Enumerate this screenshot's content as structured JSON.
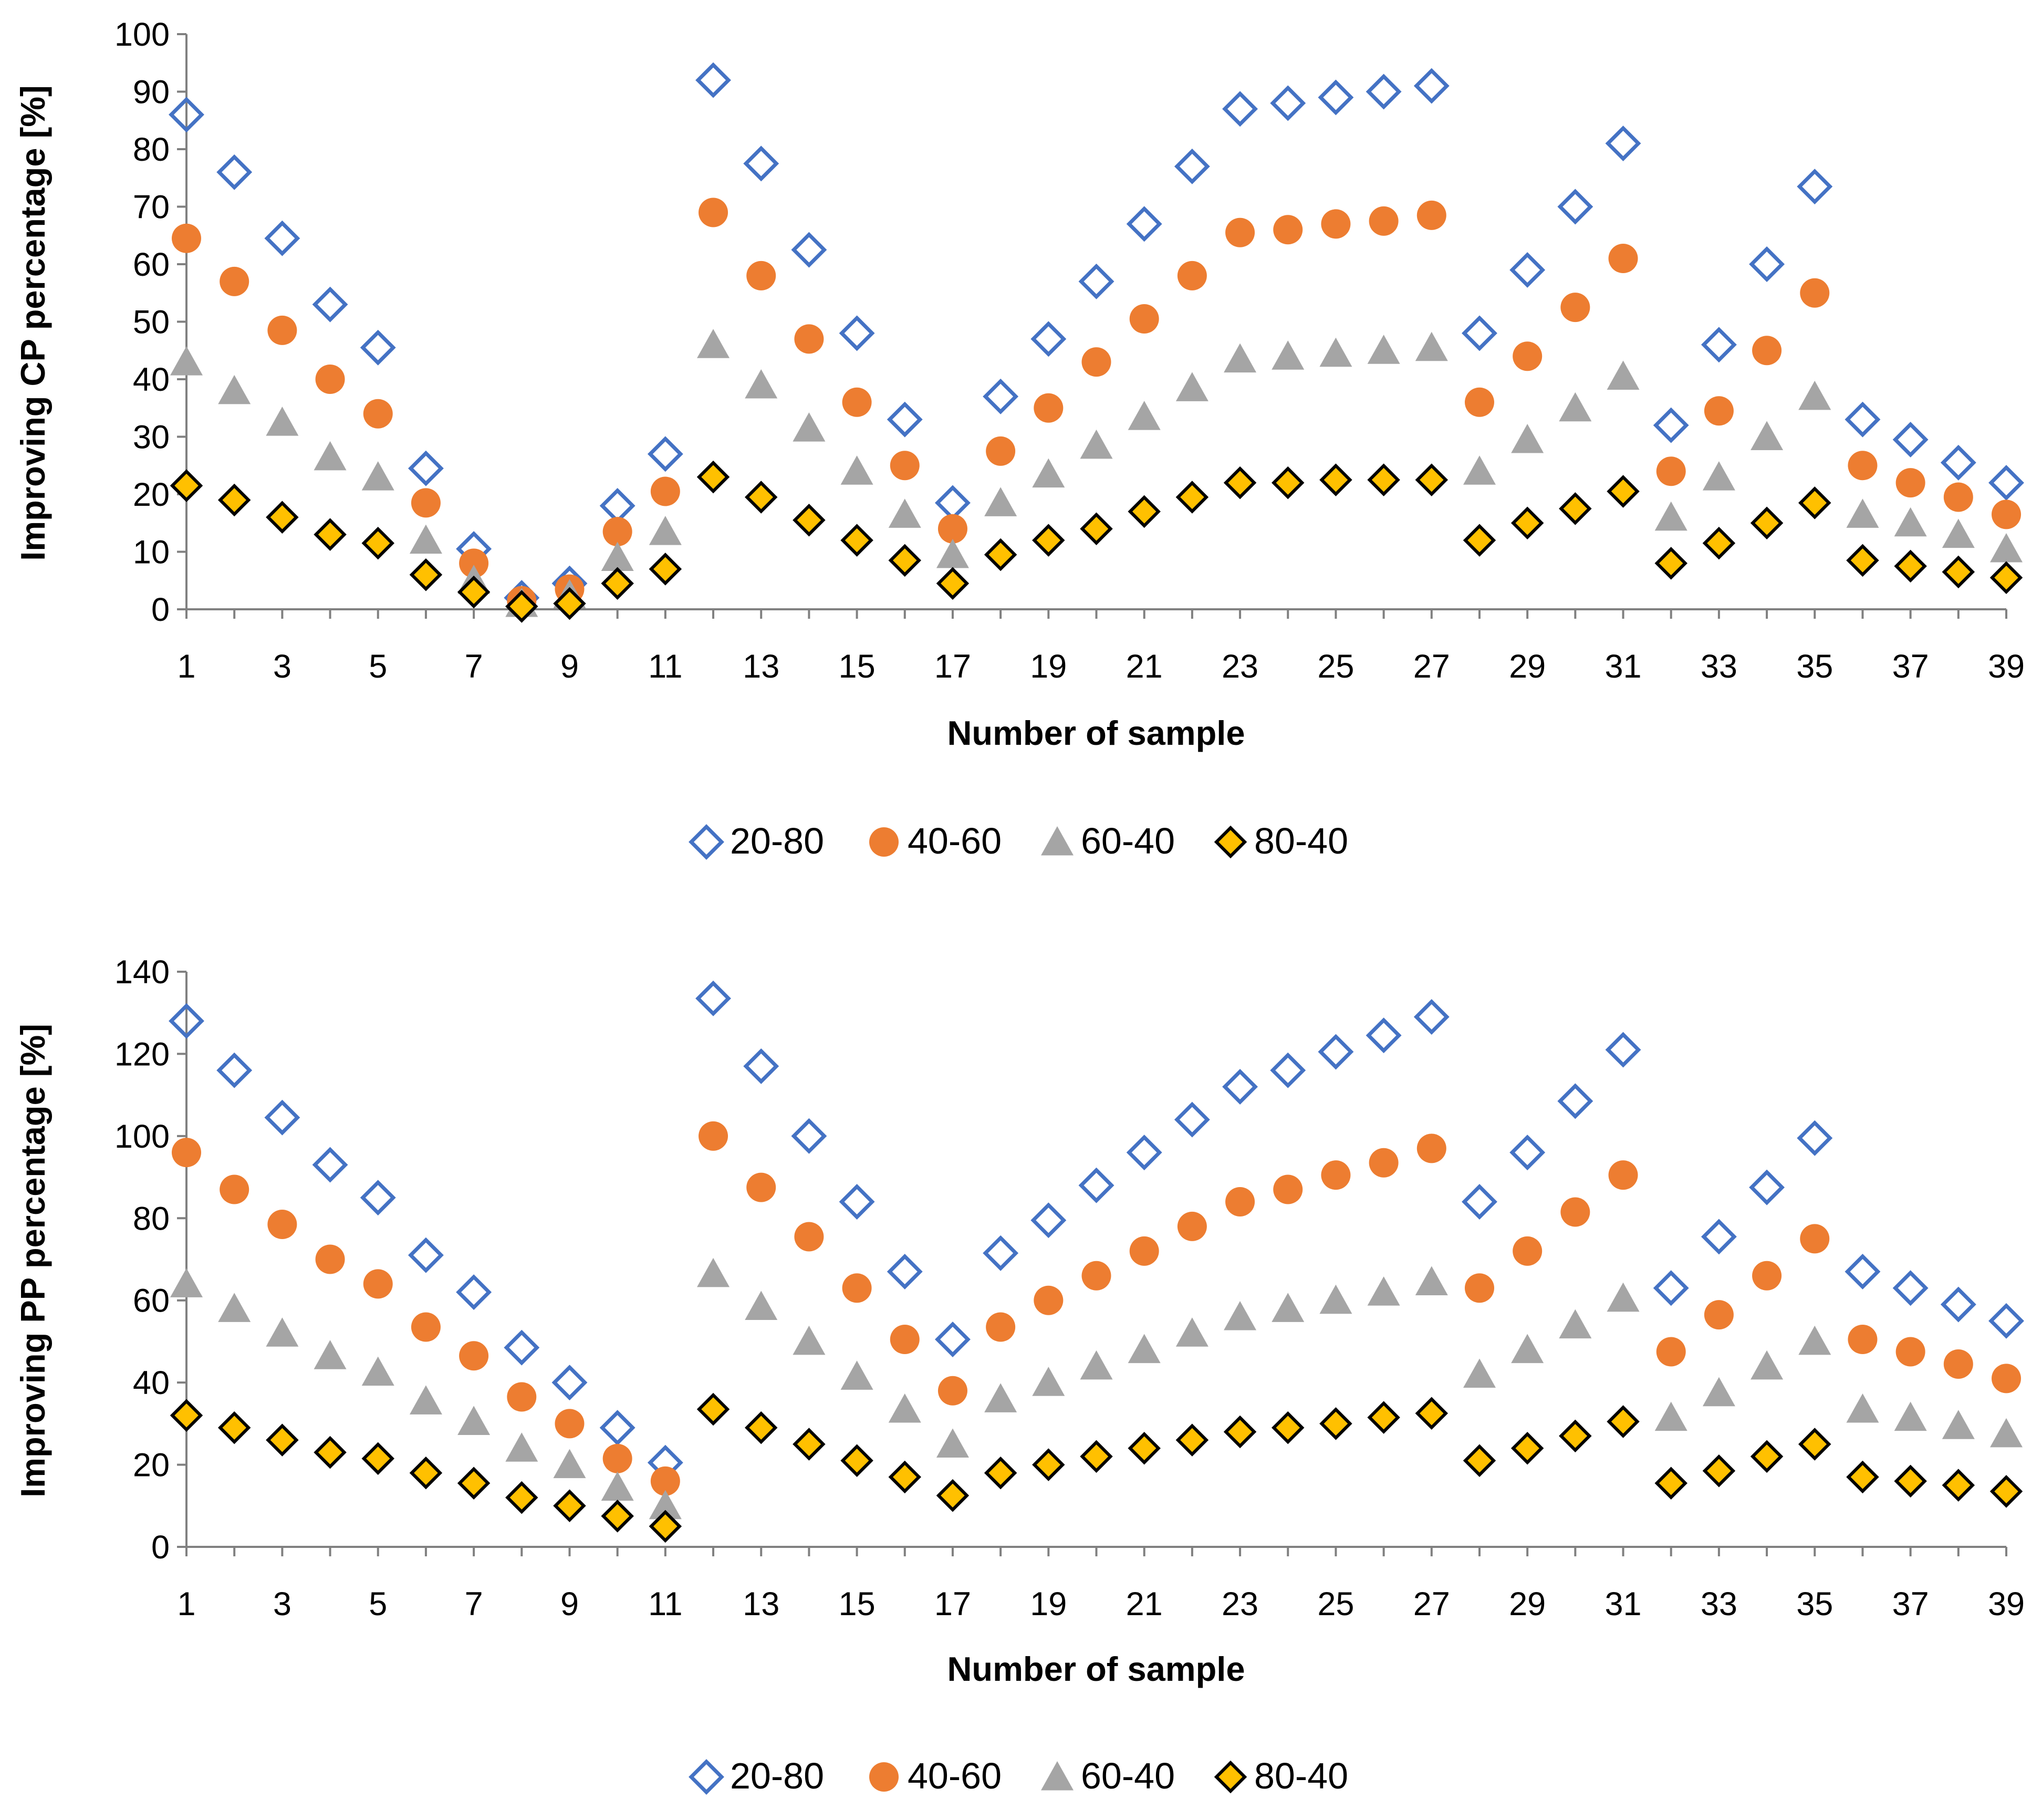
{
  "chart_data": [
    {
      "type": "scatter",
      "xlabel": "Number of sample",
      "ylabel": "Improving CP percentage [%]",
      "xlim": [
        1,
        39
      ],
      "ylim": [
        0,
        100
      ],
      "ytick_step": 10,
      "xticks": [
        1,
        3,
        5,
        7,
        9,
        11,
        13,
        15,
        17,
        19,
        21,
        23,
        25,
        27,
        29,
        31,
        33,
        35,
        37,
        39
      ],
      "yticks": [
        0,
        10,
        20,
        30,
        40,
        50,
        60,
        70,
        80,
        90,
        100
      ],
      "grid": false,
      "legend_position": "bottom-center",
      "x": [
        1,
        2,
        3,
        4,
        5,
        6,
        7,
        8,
        9,
        10,
        11,
        12,
        13,
        14,
        15,
        16,
        17,
        18,
        19,
        20,
        21,
        22,
        23,
        24,
        25,
        26,
        27,
        28,
        29,
        30,
        31,
        32,
        33,
        34,
        35,
        36,
        37,
        38,
        39
      ],
      "series": [
        {
          "name": "20-80",
          "marker": "diamond-open",
          "color": "#4472c4",
          "values": [
            86,
            76,
            64.5,
            53,
            45.5,
            24.5,
            10.5,
            2,
            4.5,
            18,
            27,
            92,
            77.5,
            62.5,
            48,
            33,
            18.5,
            37,
            47,
            57,
            67,
            77,
            87,
            88,
            89,
            90,
            91,
            48,
            59,
            70,
            81,
            32,
            46,
            60,
            73.5,
            33,
            29.5,
            25.5,
            22
          ]
        },
        {
          "name": "40-60",
          "marker": "circle",
          "color": "#ed7d31",
          "values": [
            64.5,
            57,
            48.5,
            40,
            34,
            18.5,
            8,
            1.5,
            3.5,
            13.5,
            20.5,
            69,
            58,
            47,
            36,
            25,
            14,
            27.5,
            35,
            43,
            50.5,
            58,
            65.5,
            66,
            67,
            67.5,
            68.5,
            36,
            44,
            52.5,
            61,
            24,
            34.5,
            45,
            55,
            25,
            22,
            19.5,
            16.5
          ]
        },
        {
          "name": "60-40",
          "marker": "triangle",
          "color": "#a5a5a5",
          "values": [
            43,
            38,
            32.5,
            26.5,
            23,
            12,
            5,
            1,
            2.5,
            9,
            13.5,
            46,
            39,
            31.5,
            24,
            16.5,
            9.5,
            18.5,
            23.5,
            28.5,
            33.5,
            38.5,
            43.5,
            44,
            44.5,
            45,
            45.5,
            24,
            29.5,
            35,
            40.5,
            16,
            23,
            30,
            37,
            16.5,
            15,
            13,
            10.5
          ]
        },
        {
          "name": "80-40",
          "marker": "diamond-filled",
          "color": "#ffc000",
          "values": [
            21.5,
            19,
            16,
            13,
            11.5,
            6,
            3,
            0.5,
            1,
            4.5,
            7,
            23,
            19.5,
            15.5,
            12,
            8.5,
            4.5,
            9.5,
            12,
            14,
            17,
            19.5,
            22,
            22,
            22.5,
            22.5,
            22.5,
            12,
            15,
            17.5,
            20.5,
            8,
            11.5,
            15,
            18.5,
            8.5,
            7.5,
            6.5,
            5.5
          ]
        }
      ]
    },
    {
      "type": "scatter",
      "xlabel": "Number of sample",
      "ylabel": "Improving PP percentage [%]",
      "xlim": [
        1,
        39
      ],
      "ylim": [
        0,
        140
      ],
      "ytick_step": 20,
      "xticks": [
        1,
        3,
        5,
        7,
        9,
        11,
        13,
        15,
        17,
        19,
        21,
        23,
        25,
        27,
        29,
        31,
        33,
        35,
        37,
        39
      ],
      "yticks": [
        0,
        20,
        40,
        60,
        80,
        100,
        120,
        140
      ],
      "grid": false,
      "legend_position": "bottom-center",
      "x": [
        1,
        2,
        3,
        4,
        5,
        6,
        7,
        8,
        9,
        10,
        11,
        12,
        13,
        14,
        15,
        16,
        17,
        18,
        19,
        20,
        21,
        22,
        23,
        24,
        25,
        26,
        27,
        28,
        29,
        30,
        31,
        32,
        33,
        34,
        35,
        36,
        37,
        38,
        39
      ],
      "series": [
        {
          "name": "20-80",
          "marker": "diamond-open",
          "color": "#4472c4",
          "values": [
            128,
            116,
            104.5,
            93,
            85,
            71,
            62,
            48.5,
            40,
            29,
            20.5,
            133.5,
            117,
            100,
            84,
            67,
            50.5,
            71.5,
            79.5,
            88,
            96,
            104,
            112,
            116,
            120.5,
            124.5,
            129,
            84,
            96,
            108.5,
            121,
            63,
            75.5,
            87.5,
            99.5,
            67,
            63,
            59,
            55
          ]
        },
        {
          "name": "40-60",
          "marker": "circle",
          "color": "#ed7d31",
          "values": [
            96,
            87,
            78.5,
            70,
            64,
            53.5,
            46.5,
            36.5,
            30,
            21.5,
            16,
            100,
            87.5,
            75.5,
            63,
            50.5,
            38,
            53.5,
            60,
            66,
            72,
            78,
            84,
            87,
            90.5,
            93.5,
            97,
            63,
            72,
            81.5,
            90.5,
            47.5,
            56.5,
            66,
            75,
            50.5,
            47.5,
            44.5,
            41
          ]
        },
        {
          "name": "60-40",
          "marker": "triangle",
          "color": "#a5a5a5",
          "values": [
            64,
            58,
            52,
            46.5,
            42.5,
            35.5,
            30.5,
            24,
            20,
            14.5,
            10,
            66.5,
            58.5,
            50,
            41.5,
            33.5,
            25,
            36,
            40,
            44,
            48,
            52,
            56,
            58,
            60,
            62,
            64.5,
            42,
            48,
            54,
            60.5,
            31.5,
            37.5,
            44,
            50,
            33.5,
            31.5,
            29.5,
            27.5
          ]
        },
        {
          "name": "80-40",
          "marker": "diamond-filled",
          "color": "#ffc000",
          "values": [
            32,
            29,
            26,
            23,
            21.5,
            18,
            15.5,
            12,
            10,
            7.5,
            5,
            33.5,
            29,
            25,
            21,
            17,
            12.5,
            18,
            20,
            22,
            24,
            26,
            28,
            29,
            30,
            31.5,
            32.5,
            21,
            24,
            27,
            30.5,
            15.5,
            18.5,
            22,
            25,
            17,
            16,
            15,
            13.5
          ]
        }
      ]
    }
  ]
}
